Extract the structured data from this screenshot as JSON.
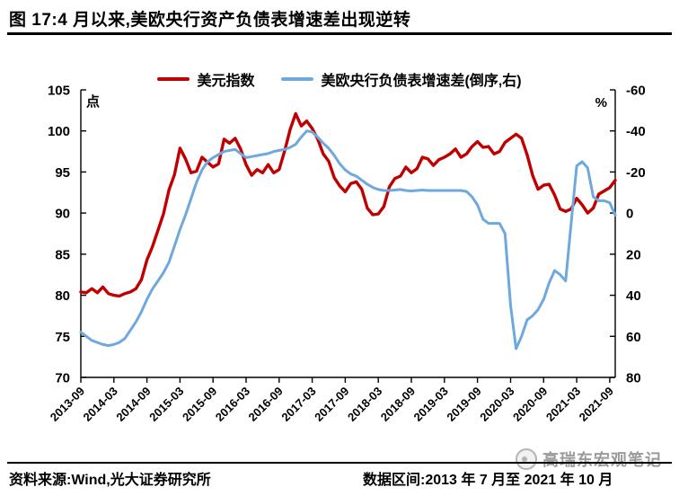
{
  "title": "图 17:4 月以来,美欧央行资产负债表增速差出现逆转",
  "legend": [
    {
      "label": "美元指数",
      "color": "#C00000"
    },
    {
      "label": "美欧央行负债表增速差(倒序,右)",
      "color": "#6FA8DC"
    }
  ],
  "footer": {
    "source": "资料来源:Wind,光大证券研究所",
    "range": "数据区间:2013 年 7 月至 2021 年 10 月"
  },
  "watermark": {
    "text": "高瑞东宏观笔记",
    "logo": "circle-logo-icon"
  },
  "colors": {
    "red_series": "#C00000",
    "blue_series": "#6FA8DC",
    "axis": "#000000",
    "watermark_gray": "#9b9b9b"
  },
  "chart_data": {
    "type": "line",
    "title": "图 17:4 月以来,美欧央行资产负债表增速差出现逆转",
    "grid": false,
    "legend_position": "top",
    "left_axis": {
      "label": "点",
      "min": 70,
      "max": 105,
      "ticks": [
        105,
        100,
        95,
        90,
        85,
        80,
        75,
        70
      ]
    },
    "right_axis": {
      "label": "%",
      "min": -60,
      "max": 80,
      "inverted": true,
      "ticks": [
        -60,
        -40,
        -20,
        0,
        20,
        40,
        60,
        80
      ]
    },
    "x_ticks": [
      "2013-09",
      "2014-03",
      "2014-09",
      "2015-03",
      "2015-09",
      "2016-03",
      "2016-09",
      "2017-03",
      "2017-09",
      "2018-03",
      "2018-09",
      "2019-03",
      "2019-09",
      "2020-03",
      "2020-09",
      "2021-03",
      "2021-09"
    ],
    "x_tick_every": 6,
    "x": [
      "2013-09",
      "2013-10",
      "2013-11",
      "2013-12",
      "2014-01",
      "2014-02",
      "2014-03",
      "2014-04",
      "2014-05",
      "2014-06",
      "2014-07",
      "2014-08",
      "2014-09",
      "2014-10",
      "2014-11",
      "2014-12",
      "2015-01",
      "2015-02",
      "2015-03",
      "2015-04",
      "2015-05",
      "2015-06",
      "2015-07",
      "2015-08",
      "2015-09",
      "2015-10",
      "2015-11",
      "2015-12",
      "2016-01",
      "2016-02",
      "2016-03",
      "2016-04",
      "2016-05",
      "2016-06",
      "2016-07",
      "2016-08",
      "2016-09",
      "2016-10",
      "2016-11",
      "2016-12",
      "2017-01",
      "2017-02",
      "2017-03",
      "2017-04",
      "2017-05",
      "2017-06",
      "2017-07",
      "2017-08",
      "2017-09",
      "2017-10",
      "2017-11",
      "2017-12",
      "2018-01",
      "2018-02",
      "2018-03",
      "2018-04",
      "2018-05",
      "2018-06",
      "2018-07",
      "2018-08",
      "2018-09",
      "2018-10",
      "2018-11",
      "2018-12",
      "2019-01",
      "2019-02",
      "2019-03",
      "2019-04",
      "2019-05",
      "2019-06",
      "2019-07",
      "2019-08",
      "2019-09",
      "2019-10",
      "2019-11",
      "2019-12",
      "2020-01",
      "2020-02",
      "2020-03",
      "2020-04",
      "2020-05",
      "2020-06",
      "2020-07",
      "2020-08",
      "2020-09",
      "2020-10",
      "2020-11",
      "2020-12",
      "2021-01",
      "2021-02",
      "2021-03",
      "2021-04",
      "2021-05",
      "2021-06",
      "2021-07",
      "2021-08",
      "2021-09",
      "2021-10"
    ],
    "series": [
      {
        "name": "美元指数",
        "axis": "left",
        "color": "#C00000",
        "values": [
          80.4,
          80.3,
          80.8,
          80.3,
          81.0,
          80.2,
          80.0,
          79.9,
          80.2,
          80.4,
          80.8,
          81.9,
          84.3,
          85.9,
          87.9,
          89.9,
          92.8,
          94.7,
          97.9,
          96.6,
          94.9,
          95.1,
          96.8,
          96.2,
          95.6,
          96.0,
          99.0,
          98.5,
          99.1,
          97.8,
          95.9,
          94.6,
          95.3,
          94.9,
          95.9,
          94.9,
          95.3,
          97.6,
          100.2,
          102.1,
          100.6,
          101.2,
          100.3,
          99.0,
          97.2,
          96.3,
          94.3,
          93.3,
          92.6,
          93.6,
          93.8,
          92.9,
          90.6,
          89.8,
          89.9,
          90.8,
          93.2,
          94.2,
          94.5,
          95.6,
          94.9,
          95.4,
          96.8,
          96.6,
          95.8,
          96.5,
          96.8,
          97.2,
          97.8,
          96.8,
          97.2,
          98.1,
          98.7,
          98.0,
          98.1,
          97.2,
          97.5,
          98.6,
          99.1,
          99.6,
          99.1,
          97.1,
          94.6,
          92.9,
          93.4,
          93.5,
          92.2,
          90.5,
          90.2,
          90.5,
          91.8,
          91.0,
          90.0,
          90.6,
          92.3,
          92.7,
          93.1,
          94.0
        ]
      },
      {
        "name": "美欧央行负债表增速差(倒序,右)",
        "axis": "right",
        "color": "#6FA8DC",
        "values": [
          58,
          60,
          62,
          63,
          64,
          64.5,
          64,
          63,
          61,
          57,
          53,
          48,
          42,
          37,
          33,
          29,
          24,
          16,
          8,
          1,
          -7,
          -15,
          -21,
          -25,
          -27,
          -28.5,
          -30,
          -30.5,
          -31,
          -29,
          -27,
          -27.5,
          -28,
          -28.5,
          -29,
          -30,
          -30.5,
          -31,
          -32,
          -33.5,
          -37,
          -40,
          -39.5,
          -37,
          -34,
          -31.5,
          -28,
          -24,
          -21,
          -19,
          -18,
          -16,
          -14,
          -12.5,
          -11.5,
          -11,
          -11,
          -11.2,
          -11.5,
          -11,
          -10.8,
          -11,
          -11.2,
          -11,
          -11,
          -11,
          -11,
          -11,
          -11,
          -11,
          -10.5,
          -8,
          -4,
          3,
          5,
          5,
          5,
          10,
          45,
          66,
          60,
          52,
          50,
          47,
          42,
          34,
          28,
          30,
          33,
          5,
          -23,
          -25,
          -22,
          -8,
          -6,
          -6,
          -5,
          1
        ]
      }
    ]
  }
}
